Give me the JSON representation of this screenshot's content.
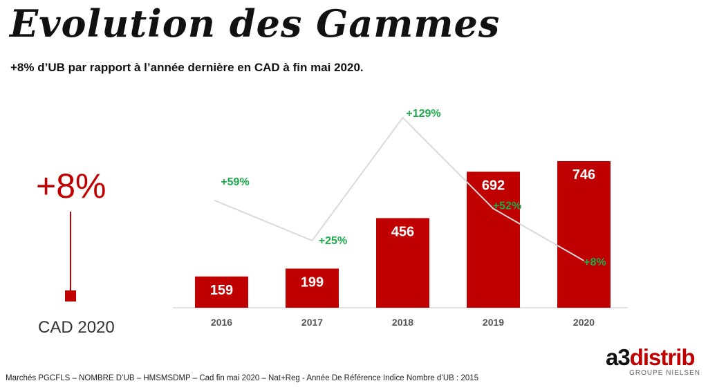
{
  "title": "Evolution des Gammes",
  "subtitle": "+8% d’UB par rapport à l’année dernière en CAD à fin mai 2020.",
  "kpi": {
    "value": "+8%",
    "label": "CAD 2020"
  },
  "footnote": "Marchés PGCFLS – NOMBRE D’UB – HMSMSDMP – Cad fin mai 2020 – Nat+Reg - Année De Référence Indice Nombre d’UB : 2015",
  "logo": {
    "a3": "a3",
    "distrib": "distrib",
    "group": "GROUPE NIELSEN"
  },
  "colors": {
    "bar": "#c00000",
    "growth_label": "#1aab4b",
    "growth_line": "#d9d9d9",
    "axis": "#d9d9d9"
  },
  "chart_data": {
    "type": "bar",
    "categories": [
      "2016",
      "2017",
      "2018",
      "2019",
      "2020"
    ],
    "values": [
      159,
      199,
      456,
      692,
      746
    ],
    "data_labels": [
      "159",
      "199",
      "456",
      "692",
      "746"
    ],
    "growth": {
      "type": "line",
      "values": [
        59,
        25,
        129,
        52,
        8
      ],
      "labels": [
        "+59%",
        "+25%",
        "+129%",
        "+52%",
        "+8%"
      ]
    },
    "grid": false,
    "legend": "none"
  }
}
